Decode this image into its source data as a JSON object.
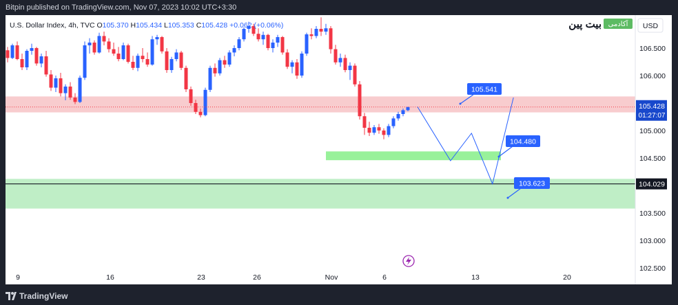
{
  "header": {
    "published": "Bitpin published on TradingView.com, Nov 07, 2023 10:02 UTC+3:30"
  },
  "legend": {
    "symbol": "U.S. Dollar Index, 4h, TVC",
    "o_label": "O",
    "o": "105.370",
    "h_label": "H",
    "h": "105.434",
    "l_label": "L",
    "l": "105.353",
    "c_label": "C",
    "c": "105.428",
    "change": "+0.062 (+0.06%)"
  },
  "brand": {
    "name": "بیت پین",
    "badge": "آکادمی"
  },
  "currency": "USD",
  "footer": {
    "brand": "TradingView"
  },
  "colors": {
    "up": "#2962ff",
    "down": "#f23645",
    "resistance_zone": "#f7c6c9",
    "support_zone": "#b8ecc0",
    "support_box": "#8df08f",
    "projection": "#2962ff",
    "callout": "#2962ff",
    "price_tag": "#1848cc"
  },
  "chart_data": {
    "type": "candlestick",
    "y_axis": {
      "min": 102.2,
      "max": 107.1,
      "ticks": [
        "106.500",
        "106.000",
        "105.500",
        "105.000",
        "104.500",
        "104.000",
        "103.500",
        "103.000",
        "102.500"
      ]
    },
    "x_axis": {
      "ticks": [
        "9",
        "16",
        "23",
        "26",
        "Nov",
        "6",
        "13",
        "20"
      ]
    },
    "last_price": {
      "value": "105.428",
      "countdown": "01:27:07"
    },
    "horizontal_line": {
      "value": "104.029"
    },
    "zones": [
      {
        "name": "resistance",
        "from": 105.33,
        "to": 105.62
      },
      {
        "name": "support-upper",
        "from": 104.46,
        "to": 104.62
      },
      {
        "name": "support-lower",
        "from": 103.58,
        "to": 104.12
      }
    ],
    "annotations": [
      {
        "label": "105.541"
      },
      {
        "label": "104.480"
      },
      {
        "label": "103.623"
      }
    ],
    "projection_path": [
      {
        "bar": 0,
        "price": 105.43
      },
      {
        "bar": 11,
        "price": 104.45
      },
      {
        "bar": 18,
        "price": 104.95
      },
      {
        "bar": 25,
        "price": 104.03
      },
      {
        "bar": 32,
        "price": 105.6
      }
    ],
    "candles": [
      [
        106.46,
        106.52,
        106.24,
        106.32
      ],
      [
        106.32,
        106.58,
        106.3,
        106.55
      ],
      [
        106.55,
        106.62,
        106.28,
        106.3
      ],
      [
        106.3,
        106.4,
        106.1,
        106.15
      ],
      [
        106.15,
        106.48,
        106.1,
        106.45
      ],
      [
        106.45,
        106.58,
        106.38,
        106.5
      ],
      [
        106.5,
        106.52,
        106.18,
        106.22
      ],
      [
        106.22,
        106.4,
        106.15,
        106.35
      ],
      [
        106.35,
        106.45,
        105.98,
        106.02
      ],
      [
        106.02,
        106.1,
        105.72,
        105.78
      ],
      [
        105.78,
        106.0,
        105.7,
        105.95
      ],
      [
        105.95,
        106.05,
        105.62,
        105.68
      ],
      [
        105.68,
        105.84,
        105.55,
        105.8
      ],
      [
        105.8,
        105.88,
        105.56,
        105.6
      ],
      [
        105.6,
        105.68,
        105.48,
        105.52
      ],
      [
        105.52,
        106.0,
        105.5,
        105.96
      ],
      [
        105.96,
        106.62,
        105.92,
        106.55
      ],
      [
        106.55,
        106.68,
        106.4,
        106.6
      ],
      [
        106.6,
        106.64,
        106.38,
        106.42
      ],
      [
        106.42,
        106.78,
        106.4,
        106.72
      ],
      [
        106.72,
        106.8,
        106.55,
        106.62
      ],
      [
        106.62,
        106.68,
        106.42,
        106.48
      ],
      [
        106.48,
        106.6,
        106.36,
        106.4
      ],
      [
        106.4,
        106.52,
        106.26,
        106.3
      ],
      [
        106.3,
        106.6,
        106.28,
        106.55
      ],
      [
        106.55,
        106.58,
        106.22,
        106.25
      ],
      [
        106.25,
        106.36,
        106.1,
        106.14
      ],
      [
        106.14,
        106.4,
        106.08,
        106.36
      ],
      [
        106.36,
        106.5,
        106.24,
        106.3
      ],
      [
        106.3,
        106.42,
        106.16,
        106.2
      ],
      [
        106.2,
        106.72,
        106.18,
        106.66
      ],
      [
        106.66,
        106.74,
        106.56,
        106.7
      ],
      [
        106.7,
        106.72,
        106.4,
        106.44
      ],
      [
        106.44,
        106.5,
        106.05,
        106.1
      ],
      [
        106.1,
        106.34,
        106.05,
        106.3
      ],
      [
        106.3,
        106.48,
        106.26,
        106.42
      ],
      [
        106.42,
        106.45,
        106.1,
        106.14
      ],
      [
        106.14,
        106.18,
        105.7,
        105.75
      ],
      [
        105.75,
        105.8,
        105.45,
        105.5
      ],
      [
        105.5,
        105.56,
        105.3,
        105.34
      ],
      [
        105.34,
        105.4,
        105.24,
        105.28
      ],
      [
        105.28,
        105.78,
        105.26,
        105.74
      ],
      [
        105.74,
        106.18,
        105.7,
        106.14
      ],
      [
        106.14,
        106.22,
        105.98,
        106.04
      ],
      [
        106.04,
        106.32,
        106.0,
        106.28
      ],
      [
        106.28,
        106.36,
        106.14,
        106.2
      ],
      [
        106.2,
        106.46,
        106.16,
        106.42
      ],
      [
        106.42,
        106.55,
        106.35,
        106.5
      ],
      [
        106.5,
        106.7,
        106.46,
        106.66
      ],
      [
        106.66,
        106.88,
        106.62,
        106.85
      ],
      [
        106.85,
        106.98,
        106.78,
        106.9
      ],
      [
        106.9,
        106.94,
        106.72,
        106.76
      ],
      [
        106.76,
        106.86,
        106.62,
        106.66
      ],
      [
        106.66,
        106.8,
        106.56,
        106.74
      ],
      [
        106.74,
        106.76,
        106.46,
        106.5
      ],
      [
        106.5,
        106.66,
        106.42,
        106.6
      ],
      [
        106.6,
        106.74,
        106.52,
        106.7
      ],
      [
        106.7,
        106.72,
        106.38,
        106.42
      ],
      [
        106.42,
        106.48,
        106.12,
        106.16
      ],
      [
        106.16,
        106.28,
        106.04,
        106.24
      ],
      [
        106.24,
        106.3,
        105.94,
        106.0
      ],
      [
        106.0,
        106.44,
        105.96,
        106.4
      ],
      [
        106.4,
        106.78,
        106.36,
        106.75
      ],
      [
        106.75,
        106.86,
        106.66,
        106.72
      ],
      [
        106.72,
        106.9,
        106.68,
        106.85
      ],
      [
        106.85,
        107.06,
        106.72,
        106.8
      ],
      [
        106.8,
        106.94,
        106.74,
        106.86
      ],
      [
        106.86,
        106.9,
        106.4,
        106.48
      ],
      [
        106.48,
        106.56,
        106.2,
        106.24
      ],
      [
        106.24,
        106.4,
        106.16,
        106.32
      ],
      [
        106.32,
        106.38,
        106.06,
        106.1
      ],
      [
        106.1,
        106.24,
        105.92,
        106.18
      ],
      [
        106.18,
        106.22,
        105.8,
        105.84
      ],
      [
        105.84,
        105.9,
        105.2,
        105.26
      ],
      [
        105.26,
        105.32,
        104.92,
        105.05
      ],
      [
        105.05,
        105.16,
        104.9,
        104.96
      ],
      [
        104.96,
        105.1,
        104.92,
        105.06
      ],
      [
        105.06,
        105.12,
        104.94,
        105.0
      ],
      [
        105.0,
        105.04,
        104.84,
        104.92
      ],
      [
        104.92,
        105.12,
        104.88,
        105.08
      ],
      [
        105.08,
        105.26,
        105.04,
        105.22
      ],
      [
        105.22,
        105.34,
        105.18,
        105.3
      ],
      [
        105.3,
        105.4,
        105.26,
        105.37
      ],
      [
        105.37,
        105.43,
        105.35,
        105.428
      ]
    ]
  }
}
